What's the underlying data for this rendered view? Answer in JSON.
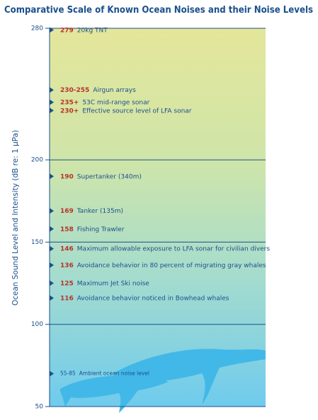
{
  "chart_data": {
    "type": "annotated-scale",
    "title": "Comparative Scale of Known Ocean Noises and their Noise Levels",
    "y_label": "Ocean Sound Level and Intensity (dB re: 1 μPa)",
    "ylim": [
      50,
      280
    ],
    "yticks": [
      50,
      100,
      150,
      200,
      280
    ],
    "grid": true,
    "marker_color": "#1b4f8c",
    "value_color": "#b8322b",
    "text_color": "#1b4f8c",
    "annotations": [
      {
        "value": 279,
        "value_label": "279",
        "text": "20kg TNT"
      },
      {
        "low": 230,
        "high": 255,
        "value_label": "230-255",
        "text": "Airgun arrays"
      },
      {
        "value": 235,
        "value_label": "235+",
        "text": "53C mid-range sonar"
      },
      {
        "value": 230,
        "value_label": "230+",
        "text": "Effective source level of LFA sonar"
      },
      {
        "value": 190,
        "value_label": "190",
        "text": "Supertanker (340m)"
      },
      {
        "value": 169,
        "value_label": "169",
        "text": "Tanker (135m)"
      },
      {
        "value": 158,
        "value_label": "158",
        "text": "Fishing Trawler"
      },
      {
        "value": 146,
        "value_label": "146",
        "text": "Maximum allowable exposure to LFA sonar for civilian divers"
      },
      {
        "value": 136,
        "value_label": "136",
        "text": "Avoidance behavior in 80 percent of migrating gray whales"
      },
      {
        "value": 125,
        "value_label": "125",
        "text": "Maximum Jet Ski noise"
      },
      {
        "value": 116,
        "value_label": "116",
        "text": "Avoidance behavior noticed in Bowhead whales"
      },
      {
        "low": 55,
        "high": 85,
        "value_label": "55-85",
        "text": "Ambient ocean noise level",
        "small": true
      }
    ]
  }
}
